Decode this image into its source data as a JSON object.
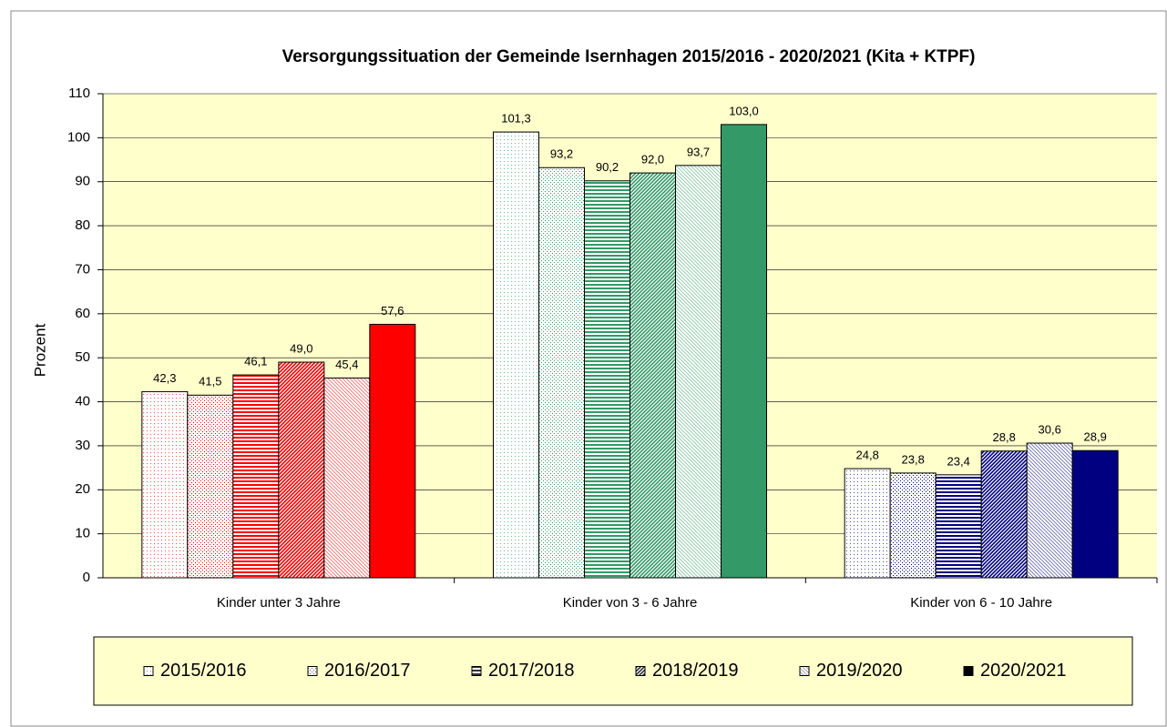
{
  "chart_data": {
    "type": "bar",
    "title": "Versorgungssituation der Gemeinde Isernhagen 2015/2016 - 2020/2021 (Kita + KTPF)",
    "y_label": "Prozent",
    "categories": [
      "Kinder unter 3 Jahre",
      "Kinder von 3 - 6 Jahre",
      "Kinder von 6 - 10 Jahre"
    ],
    "series": [
      {
        "name": "2015/2016",
        "color": "#555555",
        "colors": [
          "#ff0000",
          "#339966",
          "#000080"
        ],
        "values": [
          42.3,
          101.3,
          24.8
        ],
        "value_labels": [
          "42,3",
          "101,3",
          "24,8"
        ]
      },
      {
        "name": "2016/2017",
        "color": "#555555",
        "colors": [
          "#ff0000",
          "#339966",
          "#000080"
        ],
        "values": [
          41.5,
          93.2,
          23.8
        ],
        "value_labels": [
          "41,5",
          "93,2",
          "23,8"
        ]
      },
      {
        "name": "2017/2018",
        "color": "#333333",
        "colors": [
          "#ff0000",
          "#339966",
          "#000080"
        ],
        "values": [
          46.1,
          90.2,
          23.4
        ],
        "value_labels": [
          "46,1",
          "90,2",
          "23,4"
        ]
      },
      {
        "name": "2018/2019",
        "color": "#333333",
        "colors": [
          "#ff0000",
          "#339966",
          "#000080"
        ],
        "values": [
          49.0,
          92.0,
          28.8
        ],
        "value_labels": [
          "49,0",
          "92,0",
          "28,8"
        ]
      },
      {
        "name": "2019/2020",
        "color": "#555555",
        "colors": [
          "#ff0000",
          "#339966",
          "#000080"
        ],
        "values": [
          45.4,
          93.7,
          30.6
        ],
        "value_labels": [
          "45,4",
          "93,7",
          "30,6"
        ]
      },
      {
        "name": "2020/2021",
        "color": "#000000",
        "colors": [
          "#ff0000",
          "#339966",
          "#000080"
        ],
        "values": [
          57.6,
          103.0,
          28.9
        ],
        "value_labels": [
          "57,6",
          "103,0",
          "28,9"
        ]
      }
    ],
    "ylim": [
      0,
      110
    ],
    "yticks": [
      0,
      10,
      20,
      30,
      40,
      50,
      60,
      70,
      80,
      90,
      100,
      110
    ],
    "grid": true,
    "legend": "bottom",
    "background": "#ffffcc"
  }
}
